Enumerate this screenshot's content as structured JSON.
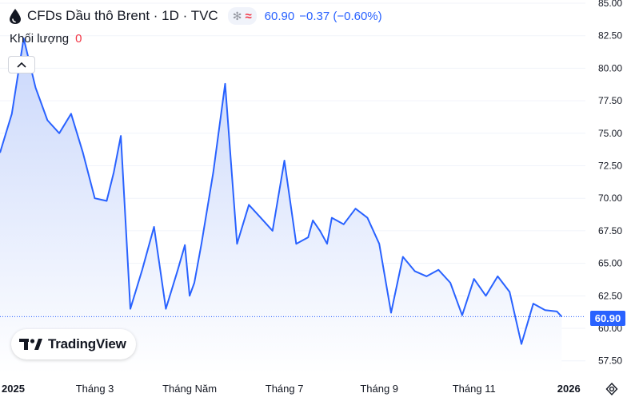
{
  "header": {
    "symbol_title": "CFDs Dầu thô Brent · 1D · TVC",
    "last_price": "60.90",
    "change": "−0.37 (−0.60%)",
    "volume_label": "Khối lượng",
    "volume_value": "0"
  },
  "logo": {
    "text": "TradingView"
  },
  "price_badge": "60.90",
  "colors": {
    "line": "#2962ff",
    "area_top": "#c9d7fb",
    "area_bottom": "#ffffff",
    "axis_text": "#131722",
    "grid": "#f0f3fa"
  },
  "chart_data": {
    "type": "area",
    "title": "CFDs Dầu thô Brent · 1D · TVC",
    "series": [
      {
        "name": "Brent",
        "x": [
          0.0,
          0.25,
          0.5,
          0.75,
          1.0,
          1.25,
          1.5,
          1.75,
          2.0,
          2.25,
          2.4,
          2.55,
          2.75,
          3.0,
          3.25,
          3.5,
          3.75,
          3.9,
          4.0,
          4.1,
          4.25,
          4.5,
          4.75,
          5.0,
          5.25,
          5.5,
          5.75,
          6.0,
          6.25,
          6.5,
          6.6,
          6.75,
          6.9,
          7.0,
          7.25,
          7.5,
          7.75,
          8.0,
          8.25,
          8.5,
          8.75,
          9.0,
          9.25,
          9.5,
          9.75,
          10.0,
          10.25,
          10.5,
          10.75,
          11.0,
          11.25,
          11.5,
          11.75,
          11.85
        ],
        "values": [
          73.5,
          76.5,
          82.3,
          78.5,
          76.0,
          75.0,
          76.5,
          73.5,
          70.0,
          69.8,
          72.0,
          74.8,
          61.5,
          64.5,
          67.8,
          61.5,
          64.5,
          66.4,
          62.5,
          63.5,
          66.5,
          72.0,
          78.8,
          66.5,
          69.5,
          68.5,
          67.5,
          72.9,
          66.5,
          67.0,
          68.3,
          67.5,
          66.5,
          68.5,
          68.0,
          69.2,
          68.5,
          66.5,
          61.2,
          65.5,
          64.4,
          64.0,
          64.5,
          63.5,
          61.0,
          63.8,
          62.5,
          64.0,
          62.8,
          58.8,
          61.9,
          61.4,
          61.3,
          60.9
        ]
      }
    ],
    "categories": [
      "2025",
      "Tháng 3",
      "Tháng Năm",
      "Tháng 7",
      "Tháng 9",
      "Tháng 11",
      "2026"
    ],
    "category_x": [
      0,
      2,
      4,
      6,
      8,
      10,
      12
    ],
    "xlim": [
      0,
      12.35
    ],
    "y_ticks": [
      "85.00",
      "82.50",
      "80.00",
      "77.50",
      "75.00",
      "72.50",
      "70.00",
      "67.50",
      "65.00",
      "62.50",
      "60.00",
      "57.50"
    ],
    "ylim": [
      56.5,
      85.0
    ],
    "last_value": 60.9,
    "xlabel": "",
    "ylabel": ""
  }
}
